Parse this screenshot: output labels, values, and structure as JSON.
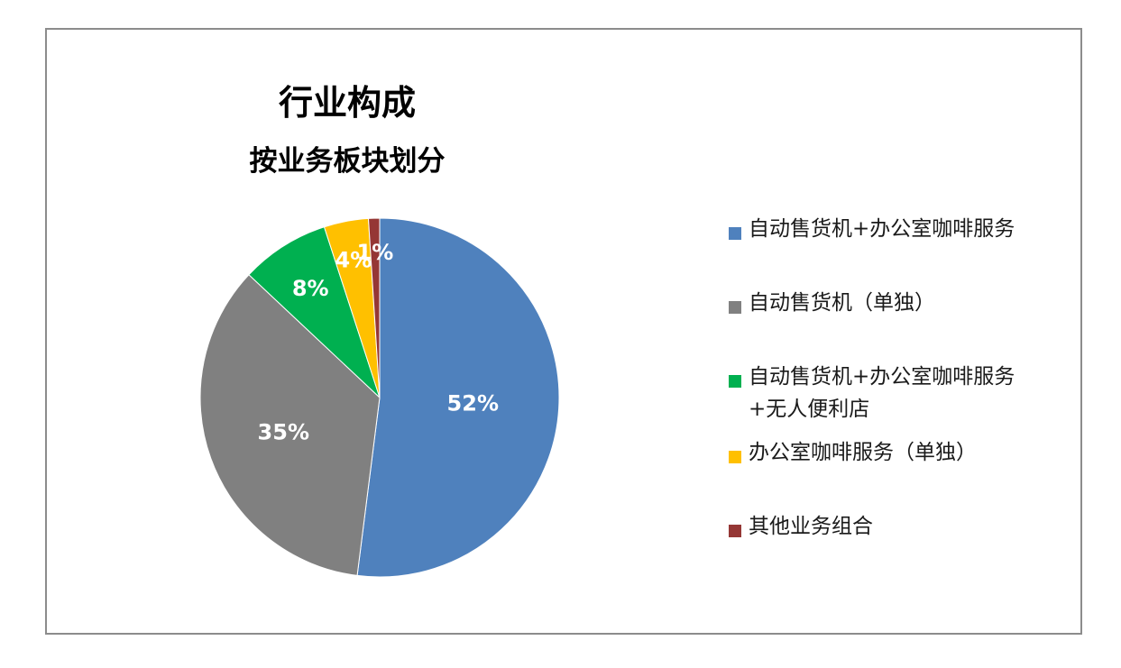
{
  "chart_data": {
    "type": "pie",
    "title": "行业构成",
    "subtitle": "按业务板块划分",
    "categories": [
      "自动售货机+办公室咖啡服务",
      "自动售货机（单独）",
      "自动售货机+办公室咖啡服务+无人便利店",
      "办公室咖啡服务（单独）",
      "其他业务组合"
    ],
    "values": [
      52,
      35,
      8,
      4,
      1
    ],
    "data_labels": [
      "52%",
      "35%",
      "8%",
      "4%",
      "1%"
    ],
    "colors": [
      "#4f81bd",
      "#808080",
      "#00b050",
      "#ffc000",
      "#953735"
    ],
    "legend_position": "right",
    "legend_labels": [
      [
        "自动售货机+办公室咖啡服务"
      ],
      [
        "自动售货机（单独）"
      ],
      [
        "自动售货机+办公室咖啡服务",
        "+无人便利店"
      ],
      [
        "办公室咖啡服务（单独）"
      ],
      [
        "其他业务组合"
      ]
    ]
  }
}
